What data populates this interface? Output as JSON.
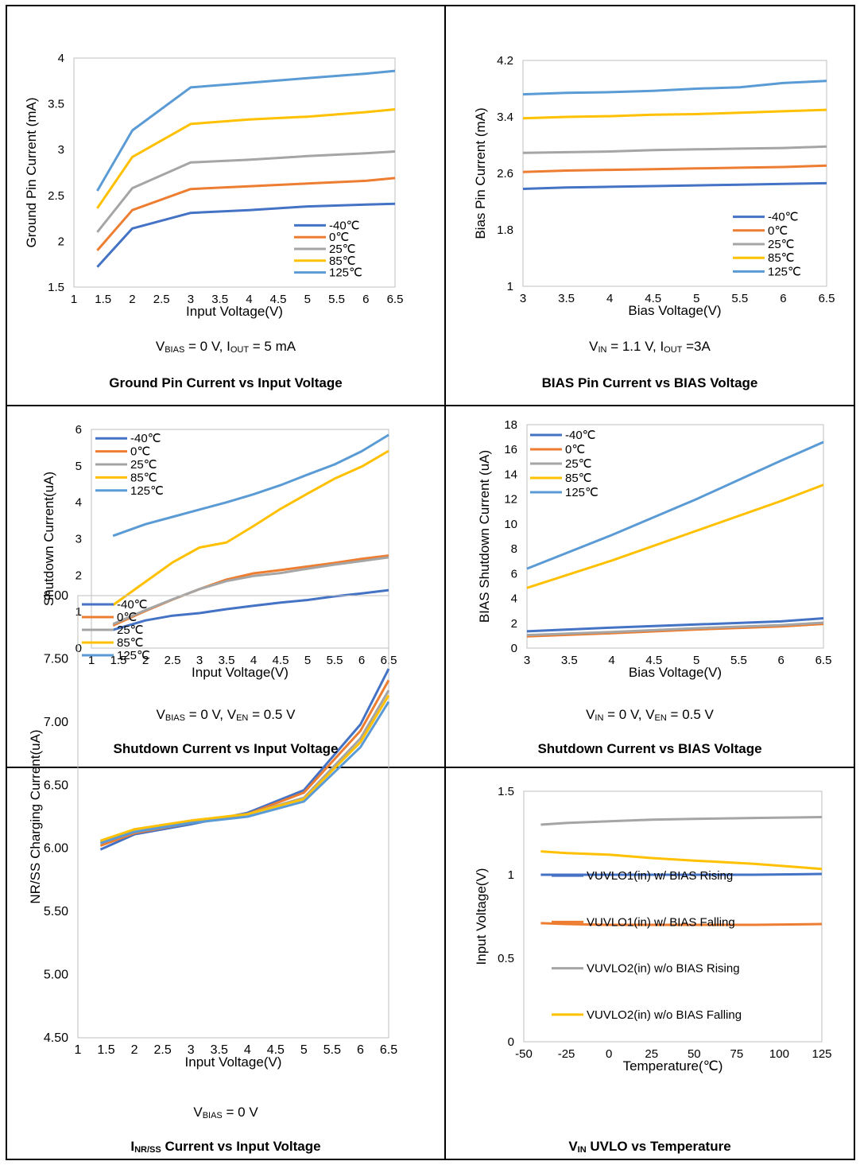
{
  "colors": {
    "c_m40": "#4472C4",
    "c_0": "#ED7D31",
    "c_25": "#A5A5A5",
    "c_85": "#FFC000",
    "c_125": "#5B9BD5"
  },
  "panels": [
    {
      "condition": {
        "parts": [
          [
            "V",
            "BIAS",
            " = 0 V, "
          ],
          [
            "I",
            "OUT",
            " = 5 mA"
          ]
        ]
      },
      "caption": {
        "pre": "",
        "sub": "",
        "text": "Ground Pin Current vs Input Voltage"
      }
    },
    {
      "condition": {
        "parts": [
          [
            "V",
            "IN",
            " = 1.1 V, "
          ],
          [
            "I",
            "OUT",
            " =3A"
          ]
        ]
      },
      "caption": {
        "pre": "",
        "sub": "",
        "text": "BIAS Pin Current vs BIAS Voltage"
      }
    },
    {
      "condition": {
        "parts": [
          [
            "V",
            "BIAS",
            " = 0 V, "
          ],
          [
            "V",
            "EN",
            " = 0.5 V"
          ]
        ]
      },
      "caption": {
        "pre": "",
        "sub": "",
        "text": "Shutdown Current vs Input Voltage"
      }
    },
    {
      "condition": {
        "parts": [
          [
            "V",
            "IN",
            " = 0 V, "
          ],
          [
            "V",
            "EN",
            " = 0.5 V"
          ]
        ]
      },
      "caption": {
        "pre": "",
        "sub": "",
        "text": "Shutdown Current vs BIAS Voltage"
      }
    },
    {
      "condition": {
        "parts": [
          [
            "V",
            "BIAS",
            " = 0 V"
          ]
        ]
      },
      "caption": {
        "pre": "I",
        "sub": "NR/SS",
        "text": " Current vs Input Voltage"
      }
    },
    {
      "condition": {
        "parts": []
      },
      "caption": {
        "pre": "V",
        "sub": "IN",
        "text": " UVLO vs Temperature"
      }
    }
  ],
  "chart_data": [
    {
      "type": "line",
      "xlabel": "Input Voltage(V)",
      "ylabel": "Ground Pin Current (mA)",
      "xlim": [
        1,
        6.5
      ],
      "ylim": [
        1.5,
        4
      ],
      "xticks": [
        "1",
        "1.5",
        "2",
        "2.5",
        "3",
        "3.5",
        "4",
        "4.5",
        "5",
        "5.5",
        "6",
        "6.5"
      ],
      "yticks": [
        "1.5",
        "2",
        "2.5",
        "3",
        "3.5",
        "4"
      ],
      "legend": "bottom-right",
      "x": [
        1.4,
        2,
        3,
        4,
        5,
        6,
        6.5
      ],
      "series": [
        {
          "name": "-40℃",
          "color": "#4472C4",
          "values": [
            1.72,
            2.14,
            2.31,
            2.34,
            2.38,
            2.4,
            2.41
          ]
        },
        {
          "name": "0℃",
          "color": "#ED7D31",
          "values": [
            1.9,
            2.34,
            2.57,
            2.6,
            2.63,
            2.66,
            2.69
          ]
        },
        {
          "name": "25℃",
          "color": "#A5A5A5",
          "values": [
            2.1,
            2.58,
            2.86,
            2.89,
            2.93,
            2.96,
            2.98
          ]
        },
        {
          "name": "85℃",
          "color": "#FFC000",
          "values": [
            2.36,
            2.92,
            3.28,
            3.33,
            3.36,
            3.41,
            3.44
          ]
        },
        {
          "name": "125℃",
          "color": "#5B9BD5",
          "values": [
            2.55,
            3.21,
            3.68,
            3.73,
            3.78,
            3.83,
            3.86
          ]
        }
      ]
    },
    {
      "type": "line",
      "xlabel": "Bias Voltage(V)",
      "ylabel": "Bias Pin Current (mA)",
      "xlim": [
        3,
        6.5
      ],
      "ylim": [
        1,
        4.2
      ],
      "xticks": [
        "3",
        "3.5",
        "4",
        "4.5",
        "5",
        "5.5",
        "6",
        "6.5"
      ],
      "yticks": [
        "1",
        "1.8",
        "2.6",
        "3.4",
        "4.2"
      ],
      "legend": "bottom-right",
      "x": [
        3,
        3.5,
        4,
        4.5,
        5,
        5.5,
        6,
        6.5
      ],
      "series": [
        {
          "name": "-40℃",
          "color": "#4472C4",
          "values": [
            2.38,
            2.4,
            2.41,
            2.42,
            2.43,
            2.44,
            2.45,
            2.46
          ]
        },
        {
          "name": "0℃",
          "color": "#ED7D31",
          "values": [
            2.62,
            2.64,
            2.65,
            2.66,
            2.67,
            2.68,
            2.69,
            2.71
          ]
        },
        {
          "name": "25℃",
          "color": "#A5A5A5",
          "values": [
            2.89,
            2.9,
            2.91,
            2.93,
            2.94,
            2.95,
            2.96,
            2.98
          ]
        },
        {
          "name": "85℃",
          "color": "#FFC000",
          "values": [
            3.38,
            3.4,
            3.41,
            3.43,
            3.44,
            3.46,
            3.48,
            3.5
          ]
        },
        {
          "name": "125℃",
          "color": "#5B9BD5",
          "values": [
            3.72,
            3.74,
            3.75,
            3.77,
            3.8,
            3.82,
            3.88,
            3.91
          ]
        }
      ]
    },
    {
      "type": "line",
      "xlabel": "Input Voltage(V)",
      "ylabel": "Shutdown Current(uA)",
      "xlim": [
        1,
        6.5
      ],
      "ylim": [
        0,
        6
      ],
      "xticks": [
        "1",
        "1.5",
        "2",
        "2.5",
        "3",
        "3.5",
        "4",
        "4.5",
        "5",
        "5.5",
        "6",
        "6.5"
      ],
      "yticks": [
        "0",
        "1",
        "2",
        "3",
        "4",
        "5",
        "6"
      ],
      "legend": "top-left",
      "x": [
        1.4,
        2,
        2.5,
        3,
        3.5,
        4,
        4.5,
        5,
        5.5,
        6,
        6.5
      ],
      "series": [
        {
          "name": "-40℃",
          "color": "#4472C4",
          "values": [
            0.5,
            0.76,
            0.89,
            0.96,
            1.07,
            1.16,
            1.25,
            1.32,
            1.42,
            1.5,
            1.59
          ]
        },
        {
          "name": "0℃",
          "color": "#ED7D31",
          "values": [
            0.62,
            1.02,
            1.33,
            1.62,
            1.88,
            2.05,
            2.14,
            2.24,
            2.34,
            2.45,
            2.54
          ]
        },
        {
          "name": "25℃",
          "color": "#A5A5A5",
          "values": [
            0.66,
            1.04,
            1.34,
            1.62,
            1.84,
            1.98,
            2.06,
            2.18,
            2.29,
            2.39,
            2.49
          ]
        },
        {
          "name": "85℃",
          "color": "#FFC000",
          "values": [
            1.18,
            1.82,
            2.35,
            2.76,
            2.9,
            3.35,
            3.82,
            4.24,
            4.65,
            4.98,
            5.41
          ]
        },
        {
          "name": "125℃",
          "color": "#5B9BD5",
          "values": [
            3.08,
            3.4,
            3.6,
            3.8,
            4.0,
            4.22,
            4.47,
            4.76,
            5.04,
            5.4,
            5.85
          ]
        }
      ]
    },
    {
      "type": "line",
      "xlabel": "Bias Voltage(V)",
      "ylabel": "BIAS Shutdown Current (uA)",
      "xlim": [
        3,
        6.5
      ],
      "ylim": [
        0,
        18
      ],
      "xticks": [
        "3",
        "3.5",
        "4",
        "4.5",
        "5",
        "5.5",
        "6",
        "6.5"
      ],
      "yticks": [
        "0",
        "2",
        "4",
        "6",
        "8",
        "10",
        "12",
        "14",
        "16",
        "18"
      ],
      "legend": "top-left",
      "x": [
        3,
        4,
        5,
        6,
        6.5
      ],
      "series": [
        {
          "name": "-40℃",
          "color": "#4472C4",
          "values": [
            1.35,
            1.65,
            1.9,
            2.15,
            2.4
          ]
        },
        {
          "name": "0℃",
          "color": "#ED7D31",
          "values": [
            0.95,
            1.2,
            1.5,
            1.75,
            1.95
          ]
        },
        {
          "name": "25℃",
          "color": "#A5A5A5",
          "values": [
            1.05,
            1.3,
            1.6,
            1.85,
            2.05
          ]
        },
        {
          "name": "85℃",
          "color": "#FFC000",
          "values": [
            4.85,
            7.05,
            9.45,
            11.85,
            13.15
          ]
        },
        {
          "name": "125℃",
          "color": "#5B9BD5",
          "values": [
            6.4,
            9.1,
            12.0,
            15.1,
            16.6
          ]
        }
      ]
    },
    {
      "type": "line",
      "xlabel": "Input Voltage(V)",
      "ylabel": "NR/SS Charging Current(uA)",
      "xlim": [
        1,
        6.5
      ],
      "ylim": [
        4.5,
        8
      ],
      "xticks": [
        "1",
        "1.5",
        "2",
        "2.5",
        "3",
        "3.5",
        "4",
        "4.5",
        "5",
        "5.5",
        "6",
        "6.5"
      ],
      "yticks": [
        "4.50",
        "5.00",
        "5.50",
        "6.00",
        "6.50",
        "7.00",
        "7.50",
        "8.00"
      ],
      "legend": "top-left",
      "x": [
        1.4,
        2,
        3,
        4,
        5,
        6,
        6.5
      ],
      "series": [
        {
          "name": "-40℃",
          "color": "#4472C4",
          "values": [
            5.99,
            6.11,
            6.19,
            6.28,
            6.46,
            6.98,
            7.42
          ]
        },
        {
          "name": "0℃",
          "color": "#ED7D31",
          "values": [
            6.02,
            6.12,
            6.2,
            6.27,
            6.44,
            6.93,
            7.33
          ]
        },
        {
          "name": "25℃",
          "color": "#A5A5A5",
          "values": [
            6.05,
            6.15,
            6.21,
            6.27,
            6.4,
            6.87,
            7.25
          ]
        },
        {
          "name": "85℃",
          "color": "#FFC000",
          "values": [
            6.06,
            6.15,
            6.22,
            6.27,
            6.39,
            6.84,
            7.21
          ]
        },
        {
          "name": "125℃",
          "color": "#5B9BD5",
          "values": [
            6.04,
            6.13,
            6.2,
            6.25,
            6.37,
            6.8,
            7.16
          ]
        }
      ]
    },
    {
      "type": "line",
      "xlabel": "Temperature(℃)",
      "ylabel": "Input Voltage(V)",
      "xlim": [
        -50,
        125
      ],
      "ylim": [
        0,
        1.5
      ],
      "xticks": [
        "-50",
        "-25",
        "0",
        "25",
        "50",
        "75",
        "100",
        "125"
      ],
      "yticks": [
        "0",
        "0.5",
        "1",
        "1.5"
      ],
      "legend": "bottom-left",
      "x": [
        -40,
        -25,
        0,
        25,
        50,
        85,
        125
      ],
      "series": [
        {
          "name": "VUVLO1(in) w/ BIAS Rising",
          "color": "#4472C4",
          "values": [
            1.0,
            1.0,
            1.0,
            1.0,
            1.0,
            1.0,
            1.005
          ]
        },
        {
          "name": "VUVLO1(in) w/ BIAS Falling",
          "color": "#ED7D31",
          "values": [
            0.71,
            0.705,
            0.7,
            0.7,
            0.7,
            0.7,
            0.705
          ]
        },
        {
          "name": "VUVLO2(in) w/o BIAS Rising",
          "color": "#A5A5A5",
          "values": [
            1.3,
            1.31,
            1.32,
            1.33,
            1.335,
            1.34,
            1.345
          ]
        },
        {
          "name": "VUVLO2(in) w/o BIAS Falling",
          "color": "#FFC000",
          "values": [
            1.14,
            1.13,
            1.12,
            1.1,
            1.085,
            1.065,
            1.035
          ]
        }
      ]
    }
  ]
}
